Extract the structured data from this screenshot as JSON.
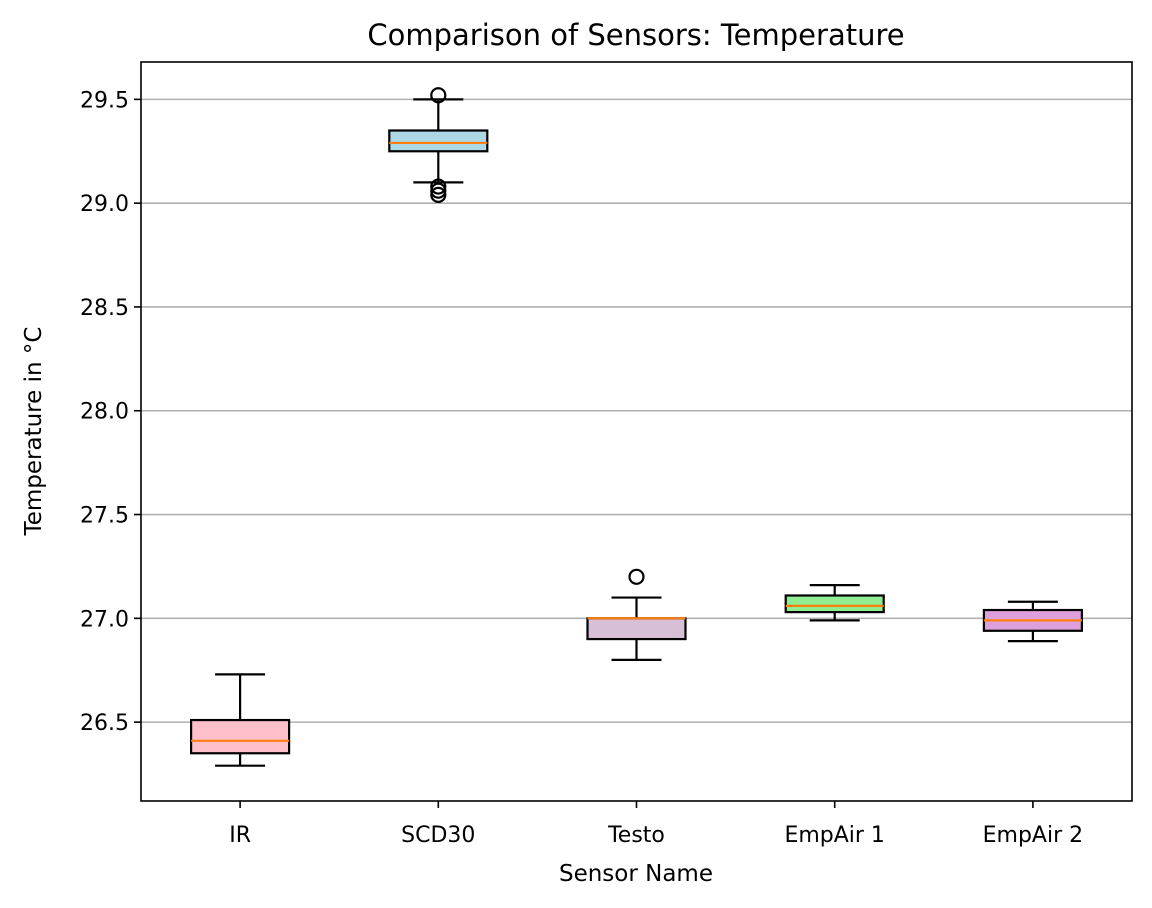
{
  "chart_data": {
    "type": "box",
    "title": "Comparison of Sensors: Temperature",
    "xlabel": "Sensor Name",
    "ylabel": "Temperature in °C",
    "ylim": [
      26.12,
      29.68
    ],
    "yticks": [
      26.5,
      27.0,
      27.5,
      28.0,
      28.5,
      29.0,
      29.5
    ],
    "ytick_labels": [
      "26.5",
      "27.0",
      "27.5",
      "28.0",
      "28.5",
      "29.0",
      "29.5"
    ],
    "grid": "y-axis",
    "median_color": "#ff7f0e",
    "boxes": [
      {
        "category": "IR",
        "color": "#ffc0cb",
        "whisker_low": 26.29,
        "q1": 26.35,
        "median": 26.41,
        "q3": 26.51,
        "whisker_high": 26.73,
        "fliers": []
      },
      {
        "category": "SCD30",
        "color": "#add8e6",
        "whisker_low": 29.1,
        "q1": 29.25,
        "median": 29.29,
        "q3": 29.35,
        "whisker_high": 29.5,
        "fliers": [
          29.04,
          29.06,
          29.08,
          29.52
        ]
      },
      {
        "category": "Testo",
        "color": "#d8bfd8",
        "whisker_low": 26.8,
        "q1": 26.9,
        "median": 27.0,
        "q3": 27.0,
        "whisker_high": 27.1,
        "fliers": [
          27.2
        ]
      },
      {
        "category": "EmpAir 1",
        "color": "#90ee90",
        "whisker_low": 26.99,
        "q1": 27.03,
        "median": 27.06,
        "q3": 27.11,
        "whisker_high": 27.16,
        "fliers": []
      },
      {
        "category": "EmpAir 2",
        "color": "#dda0dd",
        "whisker_low": 26.89,
        "q1": 26.94,
        "median": 26.99,
        "q3": 27.04,
        "whisker_high": 27.08,
        "fliers": []
      }
    ]
  }
}
